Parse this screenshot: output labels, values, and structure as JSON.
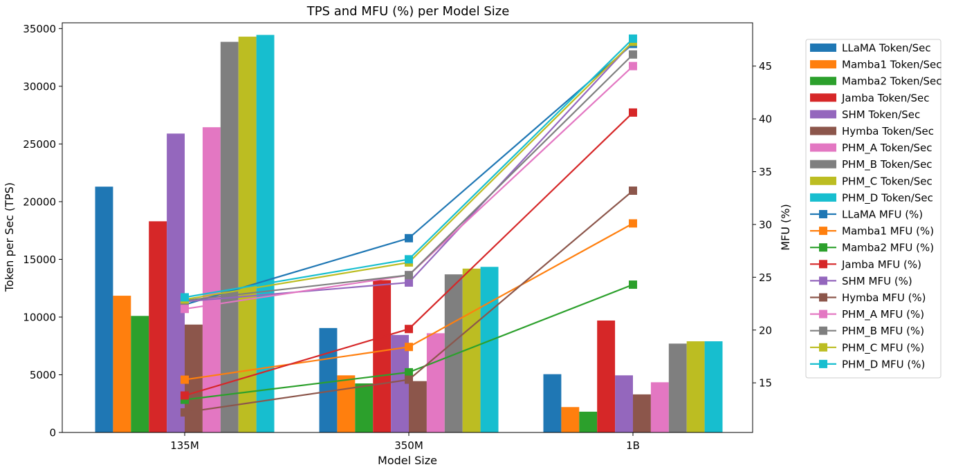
{
  "chart_data": {
    "type": "bar",
    "title": "TPS and MFU (%) per Model Size",
    "xlabel": "Model Size",
    "ylabel": "Token per Sec (TPS)",
    "ylabel_right": "MFU (%)",
    "categories": [
      "135M",
      "350M",
      "1B"
    ],
    "ylim": [
      0,
      35500
    ],
    "yticks": [
      0,
      5000,
      10000,
      15000,
      20000,
      25000,
      30000,
      35000
    ],
    "ylim_right": [
      10.3,
      49.1
    ],
    "yticks_right": [
      15,
      20,
      25,
      30,
      35,
      40,
      45
    ],
    "legend_position": "right, outside",
    "bar_series": [
      {
        "name": "LLaMA Token/Sec",
        "color": "#1f77b4",
        "values": [
          21300,
          9050,
          5050
        ]
      },
      {
        "name": "Mamba1 Token/Sec",
        "color": "#ff7f0e",
        "values": [
          11850,
          4950,
          2200
        ]
      },
      {
        "name": "Mamba2 Token/Sec",
        "color": "#2ca02c",
        "values": [
          10100,
          4250,
          1800
        ]
      },
      {
        "name": "Jamba Token/Sec",
        "color": "#d62728",
        "values": [
          18300,
          13200,
          9700
        ]
      },
      {
        "name": "SHM Token/Sec",
        "color": "#9467bd",
        "values": [
          25900,
          8450,
          4950
        ]
      },
      {
        "name": "Hymba Token/Sec",
        "color": "#8c564b",
        "values": [
          9350,
          4450,
          3300
        ]
      },
      {
        "name": "PHM_A Token/Sec",
        "color": "#e377c2",
        "values": [
          26450,
          8600,
          4350
        ]
      },
      {
        "name": "PHM_B Token/Sec",
        "color": "#7f7f7f",
        "values": [
          33850,
          13700,
          7700
        ]
      },
      {
        "name": "PHM_C Token/Sec",
        "color": "#bcbd22",
        "values": [
          34300,
          14200,
          7900
        ]
      },
      {
        "name": "PHM_D Token/Sec",
        "color": "#17becf",
        "values": [
          34450,
          14350,
          7900
        ]
      }
    ],
    "line_series": [
      {
        "name": "LLaMA MFU (%)",
        "color": "#1f77b4",
        "values": [
          22.4,
          28.7,
          47.1
        ]
      },
      {
        "name": "Mamba1 MFU (%)",
        "color": "#ff7f0e",
        "values": [
          15.3,
          18.4,
          30.1
        ]
      },
      {
        "name": "Mamba2 MFU (%)",
        "color": "#2ca02c",
        "values": [
          13.4,
          16.0,
          24.3
        ]
      },
      {
        "name": "Jamba MFU (%)",
        "color": "#d62728",
        "values": [
          13.8,
          20.1,
          40.6
        ]
      },
      {
        "name": "SHM MFU (%)",
        "color": "#9467bd",
        "values": [
          22.7,
          24.5,
          47.3
        ]
      },
      {
        "name": "Hymba MFU (%)",
        "color": "#8c564b",
        "values": [
          12.2,
          15.3,
          33.2
        ]
      },
      {
        "name": "PHM_A MFU (%)",
        "color": "#e377c2",
        "values": [
          22.0,
          25.2,
          45.0
        ]
      },
      {
        "name": "PHM_B MFU (%)",
        "color": "#7f7f7f",
        "values": [
          22.8,
          25.2,
          46.1
        ]
      },
      {
        "name": "PHM_C MFU (%)",
        "color": "#bcbd22",
        "values": [
          22.9,
          26.4,
          47.3
        ]
      },
      {
        "name": "PHM_D MFU (%)",
        "color": "#17becf",
        "values": [
          23.1,
          26.7,
          47.6
        ]
      }
    ]
  }
}
